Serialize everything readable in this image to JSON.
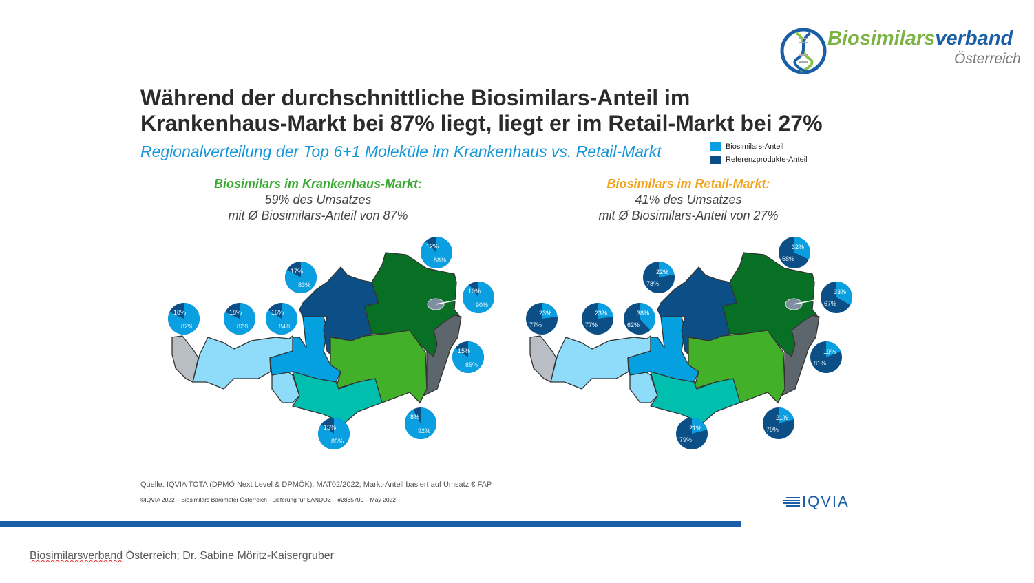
{
  "logo": {
    "brand_part1": "Biosimilars",
    "brand_part2": "verband",
    "country": "Österreich"
  },
  "title_line1": "Während der durchschnittliche Biosimilars-Anteil im",
  "title_line2": "Krankenhaus-Markt bei 87% liegt, liegt er im Retail-Markt bei 27%",
  "subtitle": "Regionalverteilung der Top 6+1 Moleküle im Krankenhaus vs. Retail-Markt",
  "legend": [
    {
      "label": "Biosimilars-Anteil",
      "color": "#0a9fe0"
    },
    {
      "label": "Referenzprodukte-Anteil",
      "color": "#0b4f86"
    }
  ],
  "chart_data": [
    {
      "type": "pie",
      "title": "Biosimilars im Krankenhaus-Markt:",
      "line2": "59% des Umsatzes",
      "line3": "mit Ø Biosimilars-Anteil von 87%",
      "title_color": "#3caa35",
      "series": [
        {
          "name": "Biosimilars-Anteil",
          "values": [
            82,
            82,
            84,
            83,
            88,
            90,
            85,
            92,
            85
          ]
        },
        {
          "name": "Referenzprodukte-Anteil",
          "values": [
            18,
            18,
            16,
            17,
            12,
            10,
            15,
            8,
            15
          ]
        }
      ]
    },
    {
      "type": "pie",
      "title": "Biosimilars im Retail-Markt:",
      "line2": "41% des Umsatzes",
      "line3": "mit Ø Biosimilars-Anteil von 27%",
      "title_color": "#f2a31b",
      "series": [
        {
          "name": "Biosimilars-Anteil",
          "values": [
            23,
            23,
            38,
            22,
            32,
            33,
            19,
            21,
            21
          ]
        },
        {
          "name": "Referenzprodukte-Anteil",
          "values": [
            77,
            77,
            62,
            78,
            68,
            67,
            81,
            79,
            79
          ]
        }
      ]
    }
  ],
  "source": "Quelle: IQVIA TOTA (DPMÖ Next Level & DPMÖK); MAT02/2022; Markt-Anteil basiert auf Umsatz € FAP",
  "copyright": "©IQVIA 2022 – Biosimilars Barometer Österreich - Lieferung für SANDOZ – #2865709 – May 2022",
  "iqvia": "IQVIA",
  "footer": {
    "part1": "Biosimilarsverband",
    "part2": " Österreich; Dr. Sabine Möritz-Kaisergruber"
  }
}
